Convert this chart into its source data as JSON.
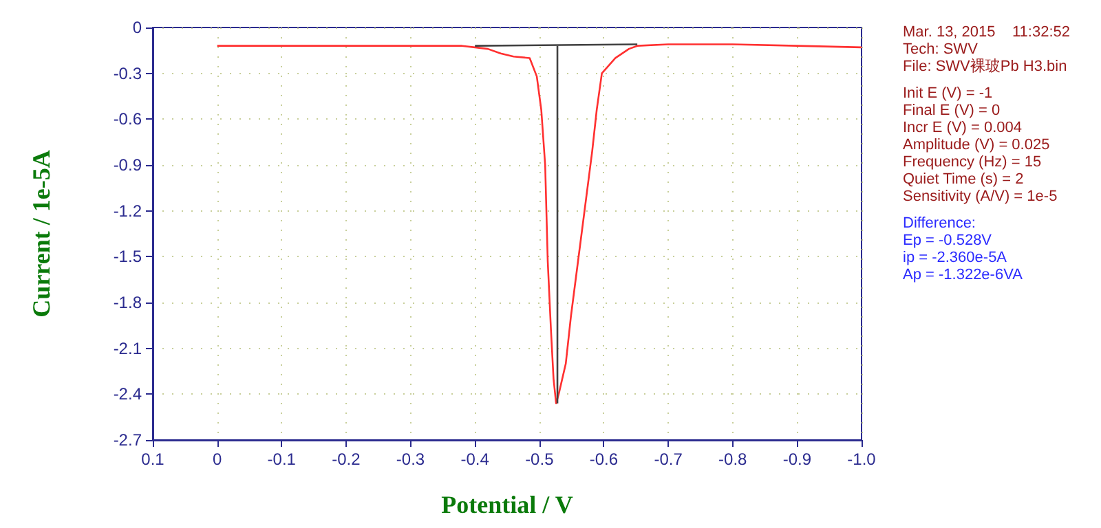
{
  "chart_data": {
    "type": "line",
    "xlabel": "Potential / V",
    "ylabel": "Current / 1e-5A",
    "xlim": [
      0.1,
      -1
    ],
    "ylim": [
      -2.7,
      0
    ],
    "xticks": [
      0.1,
      0,
      -0.1,
      -0.2,
      -0.3,
      -0.4,
      -0.5,
      -0.6,
      -0.7,
      -0.8,
      -0.9,
      {
        "value": -1.0,
        "label": "-1.0"
      }
    ],
    "yticks": [
      0,
      -0.3,
      -0.6,
      -0.9,
      -1.2,
      -1.5,
      -1.8,
      -2.1,
      -2.4,
      -2.7
    ],
    "grid": true,
    "marker": "none",
    "line_style": "solid",
    "series": [
      {
        "color": "#ff3030",
        "x": [
          0,
          -0.1,
          -0.2,
          -0.3,
          -0.38,
          -0.4,
          -0.42,
          -0.44,
          -0.46,
          -0.485,
          -0.496,
          -0.503,
          -0.509,
          -0.513,
          -0.518,
          -0.522,
          -0.526,
          -0.53,
          -0.541,
          -0.549,
          -0.56,
          -0.571,
          -0.582,
          -0.589,
          -0.597,
          -0.618,
          -0.639,
          -0.652,
          -0.7,
          -0.8,
          -0.9,
          -1.0
        ],
        "values": [
          -0.12,
          -0.12,
          -0.12,
          -0.12,
          -0.12,
          -0.13,
          -0.14,
          -0.17,
          -0.19,
          -0.2,
          -0.32,
          -0.54,
          -0.9,
          -1.53,
          -1.98,
          -2.3,
          -2.46,
          -2.4,
          -2.2,
          -1.89,
          -1.53,
          -1.17,
          -0.81,
          -0.54,
          -0.3,
          -0.2,
          -0.14,
          -0.12,
          -0.11,
          -0.11,
          -0.12,
          -0.13
        ]
      },
      {
        "color": "#404040",
        "x": [
          -0.4,
          -0.652
        ],
        "values": [
          -0.12,
          -0.11
        ]
      },
      {
        "color": "#404040",
        "x": [
          -0.528,
          -0.528
        ],
        "values": [
          -0.12,
          -2.46
        ]
      }
    ],
    "annotations": [
      "Mar. 13, 2015    11:32:52",
      "Tech: SWV",
      "File: SWV裸玻Pb H3.bin",
      "Init E (V) = -1",
      "Final E (V) = 0",
      "Incr E (V) = 0.004",
      "Amplitude (V) = 0.025",
      "Frequency (Hz) = 15",
      "Quiet Time (s) = 2",
      "Sensitivity (A/V) = 1e-5",
      "Difference:",
      "Ep = -0.528V",
      "ip = -2.360e-5A",
      "Ap = -1.322e-6VA"
    ]
  }
}
